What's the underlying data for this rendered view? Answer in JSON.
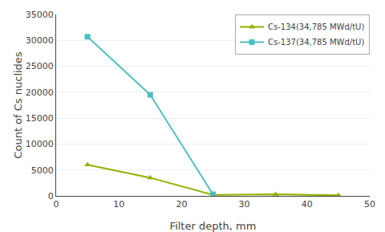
{
  "chart_data": {
    "type": "line",
    "x": [
      5,
      15,
      25,
      35,
      45
    ],
    "series": [
      {
        "name": "Cs-134(34,785 MWd/tU)",
        "color": "#8DB400",
        "marker": "triangle-up",
        "values": [
          6000,
          3500,
          200,
          300,
          100
        ]
      },
      {
        "name": "Cs-137(34,785 MWd/tU)",
        "color": "#4DBFBF",
        "marker": "square",
        "values": [
          30700,
          19500,
          300,
          null,
          null
        ]
      }
    ],
    "x_label": "Filter depth, mm",
    "y_label": "Count of Cs nuclides",
    "xlim": [
      0,
      50
    ],
    "ylim": [
      0,
      35000
    ],
    "xticks": [
      0,
      10,
      20,
      30,
      40,
      50
    ],
    "yticks": [
      0,
      5000,
      10000,
      15000,
      20000,
      25000,
      30000,
      35000
    ],
    "grid": true,
    "legend": "upper right"
  }
}
